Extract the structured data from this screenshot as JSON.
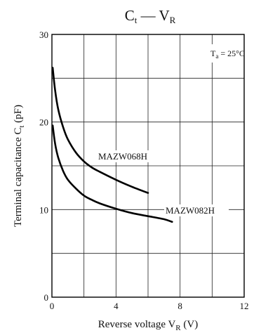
{
  "chart_data": {
    "type": "line",
    "title": {
      "main": "C",
      "main_sub": "t",
      "dash": " — ",
      "second": "V",
      "second_sub": "R"
    },
    "xlabel": {
      "text": "Reverse voltage  V",
      "sub": "R",
      "unit": "  (V)"
    },
    "ylabel": {
      "text": "Terminal capacitance  C",
      "sub": "t",
      "unit": "  (pF)"
    },
    "condition": {
      "text": "T",
      "sub": "a",
      "rest": " = 25°C"
    },
    "xlim": [
      0,
      12
    ],
    "ylim": [
      0,
      30
    ],
    "x_ticks": [
      0,
      4,
      8,
      12
    ],
    "x_tick_labels": [
      "0",
      "4",
      "8",
      "12"
    ],
    "y_ticks": [
      0,
      10,
      20,
      30
    ],
    "y_tick_labels": [
      "0",
      "10",
      "20",
      "30"
    ],
    "x_grid": [
      0,
      2,
      4,
      6,
      8,
      10,
      12
    ],
    "y_grid": [
      0,
      5,
      10,
      15,
      20,
      25,
      30
    ],
    "grid": true,
    "series": [
      {
        "name": "MAZW068H",
        "x": [
          0.05,
          0.2,
          0.4,
          0.7,
          1.0,
          1.5,
          2.0,
          2.5,
          3.0,
          4.0,
          5.0,
          6.0
        ],
        "y": [
          26.2,
          23.6,
          21.4,
          19.4,
          18.0,
          16.5,
          15.5,
          14.8,
          14.3,
          13.4,
          12.6,
          11.9
        ]
      },
      {
        "name": "MAZW082H",
        "x": [
          0.05,
          0.2,
          0.4,
          0.7,
          1.0,
          1.5,
          2.0,
          2.5,
          3.0,
          4.0,
          5.0,
          6.0,
          7.0,
          7.5
        ],
        "y": [
          19.6,
          17.5,
          15.9,
          14.4,
          13.4,
          12.4,
          11.6,
          11.1,
          10.7,
          10.1,
          9.6,
          9.25,
          8.9,
          8.6
        ]
      }
    ],
    "series_labels": [
      "MAZW068H",
      "MAZW082H"
    ]
  }
}
